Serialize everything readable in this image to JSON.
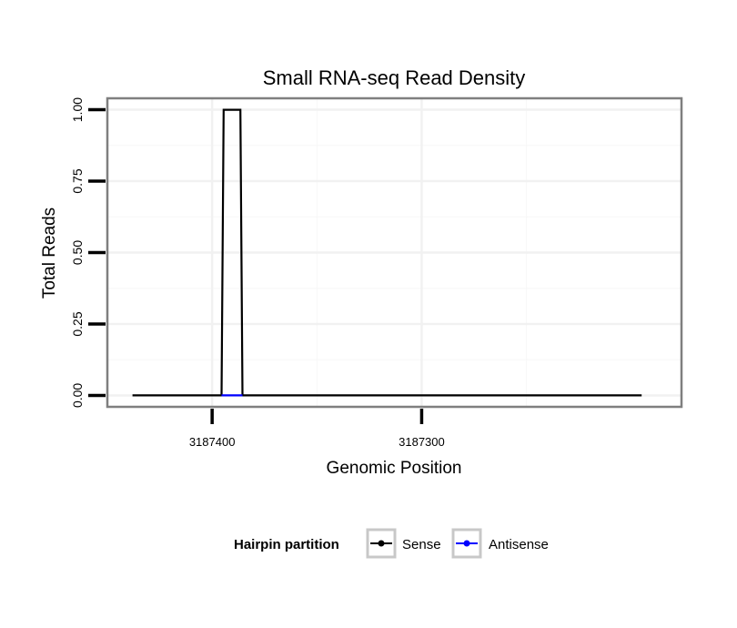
{
  "chart_data": {
    "type": "line",
    "title": "Small RNA-seq Read Density",
    "xlabel": "Genomic Position",
    "ylabel": "Total Reads",
    "x_reversed": true,
    "xlim": [
      3187450,
      3187176
    ],
    "ylim": [
      -0.04,
      1.04
    ],
    "x_ticks": [
      3187400,
      3187300
    ],
    "x_tick_labels": [
      "3187400",
      "3187300"
    ],
    "x_minor_gridlines": [
      3187450,
      3187350,
      3187250
    ],
    "y_ticks": [
      0,
      0.25,
      0.5,
      0.75,
      1.0
    ],
    "y_tick_labels": [
      "0.00",
      "0.25",
      "0.50",
      "0.75",
      "1.00"
    ],
    "y_minor_gridlines": [
      0.125,
      0.375,
      0.625,
      0.875
    ],
    "grid": true,
    "series": [
      {
        "name": "Sense",
        "color": "#000000",
        "x": [
          3187438,
          3187395.5,
          3187394.5,
          3187386.5,
          3187385.5,
          3187195
        ],
        "y": [
          0,
          0,
          1,
          1,
          0,
          0
        ]
      },
      {
        "name": "Antisense",
        "color": "#0000ff",
        "x": [
          3187395.5,
          3187385.5
        ],
        "y": [
          0,
          0
        ]
      }
    ],
    "legend": {
      "title": "Hairpin partition",
      "position": "bottom",
      "entries": [
        "Sense",
        "Antisense"
      ]
    }
  }
}
